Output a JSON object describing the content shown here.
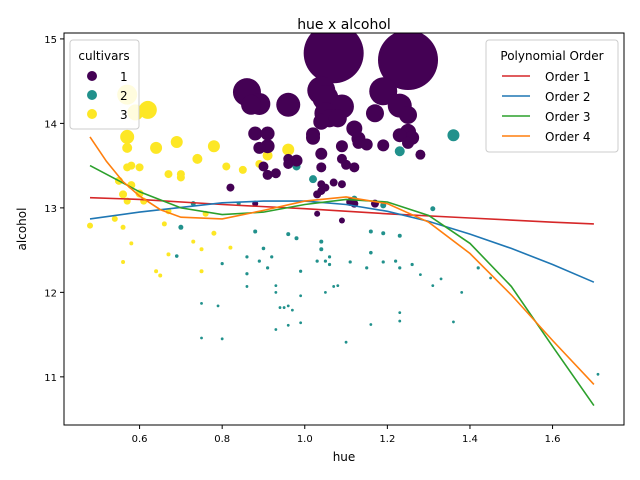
{
  "chart_data": {
    "type": "scatter",
    "title": "hue x alcohol",
    "xlabel": "hue",
    "ylabel": "alcohol",
    "xlim": [
      0.417,
      1.773
    ],
    "ylim": [
      10.43,
      15.07
    ],
    "xticks": [
      0.6,
      0.8,
      1.0,
      1.2,
      1.4,
      1.6
    ],
    "yticks": [
      11,
      12,
      13,
      14,
      15
    ],
    "grid": false,
    "legends": {
      "cultivars": {
        "title": "cultivars",
        "placement": "top-left",
        "entries": [
          {
            "label": "1",
            "color": "#440154"
          },
          {
            "label": "2",
            "color": "#21918c"
          },
          {
            "label": "3",
            "color": "#fde725"
          }
        ]
      },
      "polynomial": {
        "title": "Polynomial Order",
        "placement": "top-right",
        "entries": [
          {
            "label": "Order 1",
            "color": "#d62728"
          },
          {
            "label": "Order 2",
            "color": "#1f77b4"
          },
          {
            "label": "Order 3",
            "color": "#2ca02c"
          },
          {
            "label": "Order 4",
            "color": "#ff7f0e"
          }
        ]
      }
    },
    "series": [
      {
        "name": "1",
        "color": "#440154",
        "points": [
          [
            1.07,
            14.83,
            30
          ],
          [
            1.25,
            14.75,
            30
          ],
          [
            1.04,
            14.39,
            14
          ],
          [
            0.86,
            14.37,
            14
          ],
          [
            1.19,
            14.38,
            14
          ],
          [
            0.96,
            14.22,
            12
          ],
          [
            1.05,
            14.3,
            13
          ],
          [
            1.09,
            14.2,
            12
          ],
          [
            1.23,
            14.21,
            12
          ],
          [
            0.89,
            14.23,
            11
          ],
          [
            0.87,
            14.22,
            10
          ],
          [
            1.05,
            14.12,
            11
          ],
          [
            1.17,
            14.12,
            9
          ],
          [
            1.25,
            14.1,
            9
          ],
          [
            1.06,
            14.06,
            9
          ],
          [
            1.08,
            14.06,
            9
          ],
          [
            1.04,
            14.02,
            8
          ],
          [
            1.12,
            13.94,
            8
          ],
          [
            1.25,
            13.9,
            8
          ],
          [
            1.26,
            13.83,
            7
          ],
          [
            0.88,
            13.88,
            7
          ],
          [
            0.91,
            13.88,
            7
          ],
          [
            1.23,
            13.86,
            7
          ],
          [
            1.02,
            13.87,
            7
          ],
          [
            1.02,
            13.83,
            7
          ],
          [
            1.13,
            13.82,
            7
          ],
          [
            0.91,
            13.73,
            7
          ],
          [
            1.19,
            13.74,
            6
          ],
          [
            1.09,
            13.73,
            6
          ],
          [
            1.13,
            13.77,
            6
          ],
          [
            1.25,
            13.77,
            6
          ],
          [
            1.15,
            13.75,
            6
          ],
          [
            0.89,
            13.71,
            6
          ],
          [
            1.28,
            13.63,
            5
          ],
          [
            1.04,
            13.64,
            6
          ],
          [
            0.98,
            13.56,
            6
          ],
          [
            0.96,
            13.58,
            5
          ],
          [
            1.09,
            13.58,
            5
          ],
          [
            1.1,
            13.51,
            5
          ],
          [
            0.9,
            13.49,
            5
          ],
          [
            1.12,
            13.48,
            5
          ],
          [
            1.04,
            13.48,
            5
          ],
          [
            0.96,
            13.52,
            5
          ],
          [
            0.93,
            13.41,
            5
          ],
          [
            0.91,
            13.39,
            5
          ],
          [
            1.07,
            13.3,
            4
          ],
          [
            1.04,
            13.28,
            4
          ],
          [
            1.09,
            13.28,
            4
          ],
          [
            0.82,
            13.24,
            4
          ],
          [
            1.05,
            13.24,
            4
          ],
          [
            1.04,
            13.2,
            4
          ],
          [
            1.03,
            13.16,
            4
          ],
          [
            1.11,
            13.07,
            4
          ],
          [
            1.17,
            13.05,
            4
          ],
          [
            0.88,
            13.05,
            3
          ],
          [
            1.12,
            13.05,
            4
          ],
          [
            1.03,
            12.93,
            3
          ],
          [
            1.09,
            12.85,
            3
          ]
        ]
      },
      {
        "name": "2",
        "color": "#21918c",
        "points": [
          [
            1.36,
            13.86,
            6
          ],
          [
            1.23,
            13.67,
            5
          ],
          [
            0.98,
            13.49,
            4
          ],
          [
            1.02,
            13.34,
            4
          ],
          [
            1.12,
            13.11,
            3
          ],
          [
            1.19,
            13.03,
            3
          ],
          [
            1.31,
            12.99,
            2.5
          ],
          [
            0.73,
            13.05,
            2.5
          ],
          [
            0.84,
            13.05,
            2
          ],
          [
            0.7,
            12.77,
            2.5
          ],
          [
            0.88,
            12.72,
            2
          ],
          [
            0.96,
            12.69,
            2
          ],
          [
            1.16,
            12.72,
            2
          ],
          [
            1.19,
            12.7,
            2
          ],
          [
            1.23,
            12.67,
            2
          ],
          [
            0.98,
            12.64,
            2
          ],
          [
            1.04,
            12.6,
            2
          ],
          [
            1.04,
            12.51,
            2
          ],
          [
            0.9,
            12.52,
            1.8
          ],
          [
            1.16,
            12.47,
            1.8
          ],
          [
            0.69,
            12.43,
            1.8
          ],
          [
            0.86,
            12.42,
            1.6
          ],
          [
            0.92,
            12.42,
            1.6
          ],
          [
            1.06,
            12.42,
            1.6
          ],
          [
            0.89,
            12.37,
            1.6
          ],
          [
            1.03,
            12.37,
            1.6
          ],
          [
            1.05,
            12.37,
            1.6
          ],
          [
            1.11,
            12.36,
            1.6
          ],
          [
            1.19,
            12.36,
            1.6
          ],
          [
            1.22,
            12.37,
            1.6
          ],
          [
            1.26,
            12.33,
            1.6
          ],
          [
            1.06,
            12.33,
            1.6
          ],
          [
            0.8,
            12.34,
            1.6
          ],
          [
            0.91,
            12.29,
            1.6
          ],
          [
            1.15,
            12.29,
            1.6
          ],
          [
            1.42,
            12.29,
            1.6
          ],
          [
            1.23,
            12.29,
            1.6
          ],
          [
            0.99,
            12.25,
            1.6
          ],
          [
            0.86,
            12.22,
            1.6
          ],
          [
            1.28,
            12.21,
            1.4
          ],
          [
            1.45,
            12.17,
            1.4
          ],
          [
            1.33,
            12.16,
            1.4
          ],
          [
            0.93,
            12.08,
            1.4
          ],
          [
            0.86,
            12.07,
            1.4
          ],
          [
            1.07,
            12.07,
            1.4
          ],
          [
            1.08,
            12.08,
            1.4
          ],
          [
            1.31,
            12.08,
            1.4
          ],
          [
            0.93,
            12.0,
            1.4
          ],
          [
            1.05,
            12.0,
            1.4
          ],
          [
            1.38,
            12.0,
            1.4
          ],
          [
            0.99,
            11.96,
            1.4
          ],
          [
            0.75,
            11.87,
            1.4
          ],
          [
            0.79,
            11.84,
            1.4
          ],
          [
            0.94,
            11.82,
            1.4
          ],
          [
            0.95,
            11.82,
            1.4
          ],
          [
            0.96,
            11.84,
            1.4
          ],
          [
            0.97,
            11.79,
            1.4
          ],
          [
            1.23,
            11.76,
            1.4
          ],
          [
            0.96,
            11.61,
            1.4
          ],
          [
            1.16,
            11.62,
            1.4
          ],
          [
            1.36,
            11.65,
            1.4
          ],
          [
            1.23,
            11.66,
            1.4
          ],
          [
            0.99,
            11.64,
            1.4
          ],
          [
            0.93,
            11.56,
            1.4
          ],
          [
            0.8,
            11.45,
            1.4
          ],
          [
            0.75,
            11.46,
            1.4
          ],
          [
            1.1,
            11.41,
            1.4
          ],
          [
            1.71,
            11.03,
            1.4
          ]
        ]
      },
      {
        "name": "3",
        "color": "#fde725",
        "points": [
          [
            0.57,
            14.34,
            10
          ],
          [
            0.62,
            14.16,
            9
          ],
          [
            0.59,
            14.13,
            8
          ],
          [
            0.57,
            13.84,
            7
          ],
          [
            0.69,
            13.78,
            6
          ],
          [
            0.57,
            13.71,
            5
          ],
          [
            0.78,
            13.73,
            6
          ],
          [
            0.64,
            13.71,
            6
          ],
          [
            0.96,
            13.69,
            6
          ],
          [
            0.74,
            13.58,
            5
          ],
          [
            0.58,
            13.5,
            4
          ],
          [
            0.91,
            13.62,
            5
          ],
          [
            0.6,
            13.48,
            4
          ],
          [
            0.81,
            13.49,
            4
          ],
          [
            0.89,
            13.52,
            4
          ],
          [
            0.57,
            13.48,
            4
          ],
          [
            0.85,
            13.45,
            4
          ],
          [
            0.67,
            13.4,
            4
          ],
          [
            0.7,
            13.4,
            4
          ],
          [
            0.7,
            13.36,
            4
          ],
          [
            0.58,
            13.27,
            4
          ],
          [
            0.55,
            13.32,
            4
          ],
          [
            0.6,
            13.17,
            4
          ],
          [
            0.56,
            13.16,
            4
          ],
          [
            0.61,
            13.08,
            3.5
          ],
          [
            0.57,
            13.08,
            3.5
          ],
          [
            0.76,
            12.93,
            3
          ],
          [
            0.67,
            12.96,
            3
          ],
          [
            0.54,
            12.87,
            3
          ],
          [
            0.48,
            12.79,
            3
          ],
          [
            0.66,
            12.81,
            2.5
          ],
          [
            0.56,
            12.77,
            2.5
          ],
          [
            0.78,
            12.7,
            2.5
          ],
          [
            0.73,
            12.6,
            2
          ],
          [
            0.58,
            12.58,
            2
          ],
          [
            0.82,
            12.53,
            2
          ],
          [
            0.75,
            12.51,
            2
          ],
          [
            0.67,
            12.45,
            2
          ],
          [
            0.56,
            12.36,
            2
          ],
          [
            0.75,
            12.25,
            2
          ],
          [
            0.64,
            12.25,
            2
          ],
          [
            0.65,
            12.2,
            2
          ]
        ]
      }
    ],
    "fits": [
      {
        "name": "Order 1",
        "color": "#d62728",
        "x": [
          0.48,
          0.6,
          0.8,
          1.0,
          1.2,
          1.4,
          1.6,
          1.7
        ],
        "y": [
          13.12,
          13.1,
          13.04,
          12.99,
          12.93,
          12.88,
          12.83,
          12.81
        ]
      },
      {
        "name": "Order 2",
        "color": "#1f77b4",
        "x": [
          0.48,
          0.6,
          0.8,
          0.9,
          1.0,
          1.1,
          1.2,
          1.3,
          1.4,
          1.5,
          1.6,
          1.7
        ],
        "y": [
          12.87,
          12.95,
          13.06,
          13.08,
          13.08,
          13.04,
          12.96,
          12.84,
          12.69,
          12.52,
          12.33,
          12.12
        ]
      },
      {
        "name": "Order 3",
        "color": "#2ca02c",
        "x": [
          0.48,
          0.55,
          0.6,
          0.7,
          0.8,
          0.9,
          1.0,
          1.1,
          1.2,
          1.3,
          1.4,
          1.5,
          1.6,
          1.7
        ],
        "y": [
          13.5,
          13.32,
          13.19,
          13.0,
          12.92,
          12.95,
          13.04,
          13.1,
          13.07,
          12.91,
          12.58,
          12.07,
          11.36,
          10.66
        ]
      },
      {
        "name": "Order 4",
        "color": "#ff7f0e",
        "x": [
          0.48,
          0.52,
          0.56,
          0.6,
          0.65,
          0.7,
          0.8,
          0.9,
          1.0,
          1.1,
          1.2,
          1.3,
          1.4,
          1.5,
          1.6,
          1.7
        ],
        "y": [
          13.84,
          13.55,
          13.31,
          13.14,
          12.98,
          12.89,
          12.87,
          12.97,
          13.08,
          13.13,
          13.05,
          12.83,
          12.46,
          11.97,
          11.43,
          10.91
        ]
      }
    ]
  }
}
